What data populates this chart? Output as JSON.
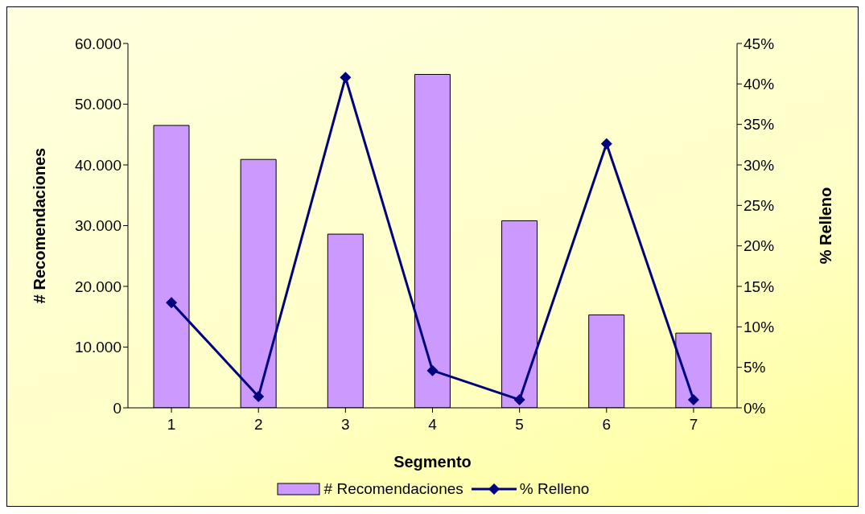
{
  "chart_data": {
    "type": "bar",
    "xlabel": "Segmento",
    "ylabel": "# Recomendaciones",
    "y2label": "% Relleno",
    "categories": [
      "1",
      "2",
      "3",
      "4",
      "5",
      "6",
      "7"
    ],
    "series": [
      {
        "name": "# Recomendaciones",
        "color": "#cc99ff",
        "values": [
          46500,
          40900,
          28600,
          54900,
          30800,
          15300,
          12300
        ]
      },
      {
        "name": "% Relleno",
        "type": "line",
        "axis": "y2",
        "color": "#000080",
        "marker": "diamond",
        "values": [
          13.0,
          1.4,
          40.8,
          4.6,
          1.0,
          32.6,
          1.0
        ]
      }
    ],
    "ylim": [
      0,
      60000
    ],
    "yticks": [
      {
        "value": 0,
        "label": "0"
      },
      {
        "value": 10000,
        "label": "10.000"
      },
      {
        "value": 20000,
        "label": "20.000"
      },
      {
        "value": 30000,
        "label": "30.000"
      },
      {
        "value": 40000,
        "label": "40.000"
      },
      {
        "value": 50000,
        "label": "50.000"
      },
      {
        "value": 60000,
        "label": "60.000"
      }
    ],
    "y2lim": [
      0,
      45
    ],
    "y2ticks": [
      {
        "value": 0,
        "label": "0%"
      },
      {
        "value": 5,
        "label": "5%"
      },
      {
        "value": 10,
        "label": "10%"
      },
      {
        "value": 15,
        "label": "15%"
      },
      {
        "value": 20,
        "label": "20%"
      },
      {
        "value": 25,
        "label": "25%"
      },
      {
        "value": 30,
        "label": "30%"
      },
      {
        "value": 35,
        "label": "35%"
      },
      {
        "value": 40,
        "label": "40%"
      },
      {
        "value": 45,
        "label": "45%"
      }
    ],
    "grid": false,
    "legend": "bottom"
  }
}
